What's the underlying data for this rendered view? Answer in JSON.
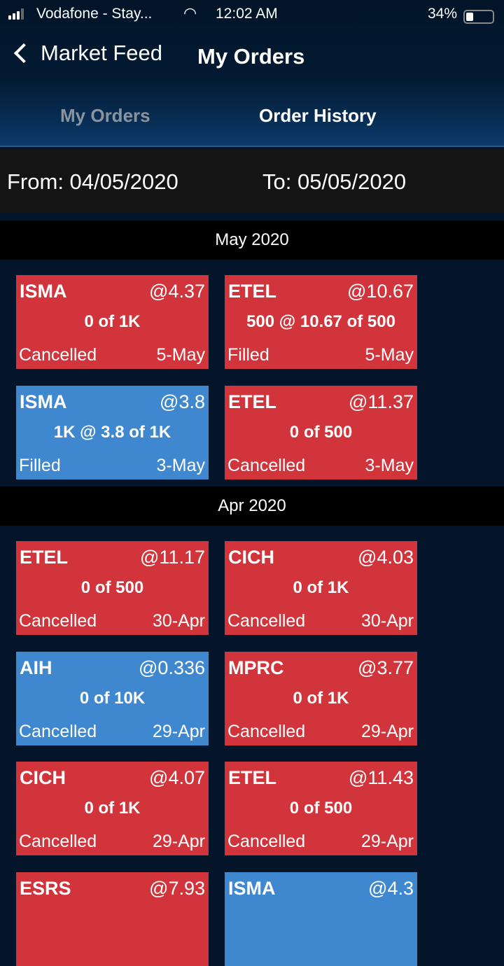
{
  "status_bar": {
    "carrier": "Vodafone - Stay...",
    "time": "12:02 AM",
    "battery": "34%",
    "battery_level": 0.34
  },
  "nav": {
    "back_label": "Market Feed",
    "title": "My Orders"
  },
  "tabs": [
    {
      "label": "My Orders",
      "active": false
    },
    {
      "label": "Order History",
      "active": true
    }
  ],
  "filter": {
    "from": "From: 04/05/2020",
    "to": "To: 05/05/2020"
  },
  "colors": {
    "cancelled_or_sell": "#d1343b",
    "buy": "#3f88d0",
    "background": "#04152a"
  },
  "sections": [
    {
      "title": "May 2020",
      "orders": [
        {
          "symbol": "ISMA",
          "price": "@4.37",
          "qty": "0 of 1K",
          "status": "Cancelled",
          "date": "5-May",
          "color": "red"
        },
        {
          "symbol": "ETEL",
          "price": "@10.67",
          "qty": "500 @ 10.67 of 500",
          "status": "Filled",
          "date": "5-May",
          "color": "red"
        },
        {
          "symbol": "ISMA",
          "price": "@3.8",
          "qty": "1K @ 3.8 of 1K",
          "status": "Filled",
          "date": "3-May",
          "color": "blue"
        },
        {
          "symbol": "ETEL",
          "price": "@11.37",
          "qty": "0 of 500",
          "status": "Cancelled",
          "date": "3-May",
          "color": "red"
        }
      ]
    },
    {
      "title": "Apr 2020",
      "orders": [
        {
          "symbol": "ETEL",
          "price": "@11.17",
          "qty": "0 of 500",
          "status": "Cancelled",
          "date": "30-Apr",
          "color": "red"
        },
        {
          "symbol": "CICH",
          "price": "@4.03",
          "qty": "0 of 1K",
          "status": "Cancelled",
          "date": "30-Apr",
          "color": "red"
        },
        {
          "symbol": "AIH",
          "price": "@0.336",
          "qty": "0 of 10K",
          "status": "Cancelled",
          "date": "29-Apr",
          "color": "blue"
        },
        {
          "symbol": "MPRC",
          "price": "@3.77",
          "qty": "0 of 1K",
          "status": "Cancelled",
          "date": "29-Apr",
          "color": "red"
        },
        {
          "symbol": "CICH",
          "price": "@4.07",
          "qty": "0 of 1K",
          "status": "Cancelled",
          "date": "29-Apr",
          "color": "red"
        },
        {
          "symbol": "ETEL",
          "price": "@11.43",
          "qty": "0 of 500",
          "status": "Cancelled",
          "date": "29-Apr",
          "color": "red"
        },
        {
          "symbol": "ESRS",
          "price": "@7.93",
          "color": "red"
        },
        {
          "symbol": "ISMA",
          "price": "@4.3",
          "color": "blue"
        }
      ]
    }
  ]
}
